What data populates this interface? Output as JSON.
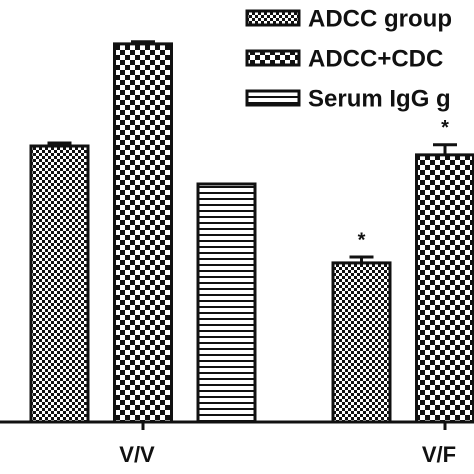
{
  "chart_data": {
    "type": "bar",
    "categories": [
      "V/V",
      "V/F"
    ],
    "ylim": [
      0,
      100
    ],
    "series": [
      {
        "name": "ADCC group",
        "color": "#111111",
        "pattern": "fine-checker",
        "values": [
          65.4,
          37.7
        ],
        "errors": [
          0.7,
          1.4
        ],
        "annotations": [
          null,
          "*"
        ]
      },
      {
        "name": "ADCC+CDC",
        "color": "#111111",
        "pattern": "checker",
        "values": [
          89.6,
          63.3
        ],
        "errors": [
          0.5,
          2.4
        ],
        "annotations": [
          null,
          "*"
        ]
      },
      {
        "name": "Serum IgG g",
        "color": "#111111",
        "pattern": "hstripes",
        "values": [
          56.4,
          null
        ],
        "errors": [
          null,
          null
        ],
        "annotations": [
          null,
          null
        ]
      }
    ]
  }
}
